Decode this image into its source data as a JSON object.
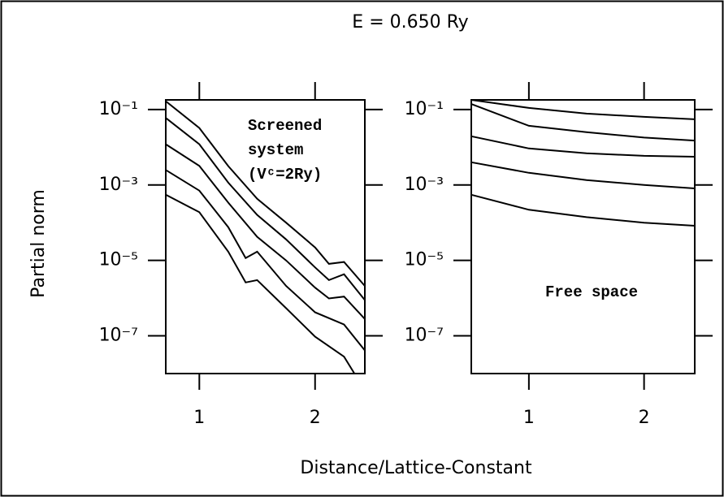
{
  "title": "E =  0.650 Ry",
  "x_label": "Distance/Lattice-Constant",
  "y_label": "Partial norm",
  "chart_data": [
    {
      "type": "line",
      "log_y": true,
      "xlim": [
        0.71,
        2.43
      ],
      "ylim": [
        1e-08,
        0.18
      ],
      "xticks": [
        1,
        2
      ],
      "yticks": [
        {
          "value": 0.1,
          "label": "10⁻¹"
        },
        {
          "value": 0.001,
          "label": "10⁻³"
        },
        {
          "value": 1e-05,
          "label": "10⁻⁵"
        },
        {
          "value": 1e-07,
          "label": "10⁻⁷"
        }
      ],
      "annotation": [
        "Screened",
        "system",
        "(Vᶜ=2Ry)"
      ],
      "series": [
        {
          "color": "#000000",
          "x": [
            0.71,
            1.0,
            1.25,
            1.5,
            1.75,
            2.0,
            2.12,
            2.25,
            2.43
          ],
          "values": [
            0.166,
            0.0324,
            0.00316,
            0.00043,
            0.0001,
            2.2e-05,
            8.1e-06,
            9.1e-06,
            2.1e-06
          ]
        },
        {
          "color": "#000000",
          "x": [
            0.71,
            1.0,
            1.25,
            1.5,
            1.75,
            2.0,
            2.12,
            2.25,
            2.43
          ],
          "values": [
            0.06,
            0.012,
            0.00115,
            0.00016,
            3.6e-05,
            6.5e-06,
            3e-06,
            4.3e-06,
            8.9e-07
          ]
        },
        {
          "color": "#000000",
          "x": [
            0.71,
            1.0,
            1.25,
            1.5,
            1.75,
            2.0,
            2.12,
            2.25,
            2.43
          ],
          "values": [
            0.012,
            0.0032,
            0.00034,
            4.2e-05,
            1e-05,
            1.9e-06,
            9.8e-07,
            1.1e-06,
            2.8e-07
          ]
        },
        {
          "color": "#000000",
          "x": [
            0.71,
            1.0,
            1.25,
            1.4,
            1.5,
            1.75,
            2.0,
            2.25,
            2.43
          ],
          "values": [
            0.0025,
            0.00071,
            7.6e-05,
            1.15e-05,
            1.7e-05,
            2.1e-06,
            4.2e-07,
            2e-07,
            4.1e-08
          ]
        },
        {
          "color": "#000000",
          "x": [
            0.71,
            1.0,
            1.25,
            1.4,
            1.5,
            1.75,
            2.0,
            2.25,
            2.34
          ],
          "values": [
            0.00055,
            0.00019,
            1.7e-05,
            2.6e-06,
            3e-06,
            5.4e-07,
            9.5e-08,
            2.8e-08,
            1e-08
          ]
        }
      ]
    },
    {
      "type": "line",
      "log_y": true,
      "xlim": [
        0.5,
        2.44
      ],
      "ylim": [
        1e-08,
        0.18
      ],
      "xticks": [
        1,
        2
      ],
      "yticks": [
        {
          "value": 0.1,
          "label": "10⁻¹"
        },
        {
          "value": 0.001,
          "label": "10⁻³"
        },
        {
          "value": 1e-05,
          "label": "10⁻⁵"
        },
        {
          "value": 1e-07,
          "label": "10⁻⁷"
        }
      ],
      "annotation": [
        "Free space"
      ],
      "series": [
        {
          "color": "#000000",
          "x": [
            0.5,
            1.0,
            1.5,
            2.0,
            2.44
          ],
          "values": [
            0.18,
            0.11,
            0.078,
            0.064,
            0.055
          ]
        },
        {
          "color": "#000000",
          "x": [
            0.5,
            1.0,
            1.5,
            2.0,
            2.44
          ],
          "values": [
            0.14,
            0.037,
            0.025,
            0.018,
            0.015
          ]
        },
        {
          "color": "#000000",
          "x": [
            0.5,
            1.0,
            1.5,
            2.0,
            2.44
          ],
          "values": [
            0.0195,
            0.0093,
            0.0069,
            0.0059,
            0.0056
          ]
        },
        {
          "color": "#000000",
          "x": [
            0.5,
            1.0,
            1.5,
            2.0,
            2.44
          ],
          "values": [
            0.004,
            0.0021,
            0.00135,
            0.001,
            0.00081
          ]
        },
        {
          "color": "#000000",
          "x": [
            0.5,
            1.0,
            1.5,
            2.0,
            2.44
          ],
          "values": [
            0.00055,
            0.00022,
            0.00014,
            0.0001,
            8.3e-05
          ]
        }
      ]
    }
  ]
}
